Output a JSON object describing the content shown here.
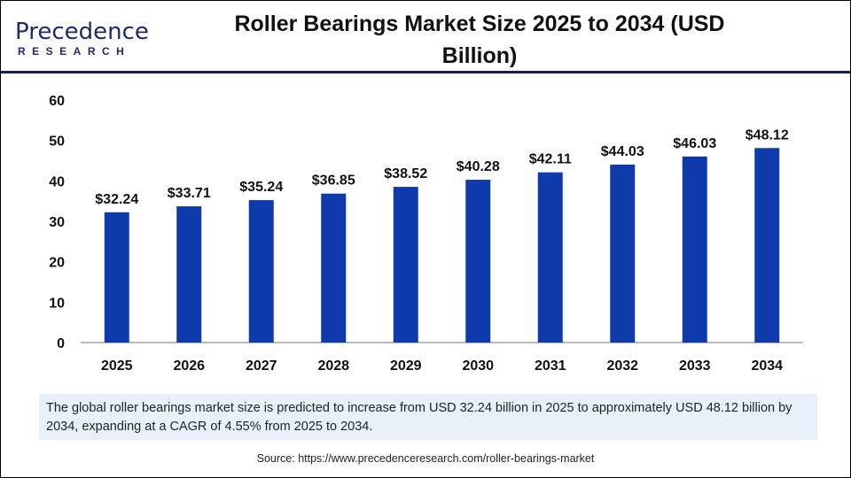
{
  "logo": {
    "line1": "Precedence",
    "line2": "RESEARCH"
  },
  "title": "Roller Bearings Market Size 2025 to 2034 (USD Billion)",
  "chart_data": {
    "type": "bar",
    "title": "Roller Bearings Market Size 2025 to 2034 (USD Billion)",
    "categories": [
      "2025",
      "2026",
      "2027",
      "2028",
      "2029",
      "2030",
      "2031",
      "2032",
      "2033",
      "2034"
    ],
    "values": [
      32.24,
      33.71,
      35.24,
      36.85,
      38.52,
      40.28,
      42.11,
      44.03,
      46.03,
      48.12
    ],
    "data_labels": [
      "$32.24",
      "$33.71",
      "$35.24",
      "$36.85",
      "$38.52",
      "$40.28",
      "$42.11",
      "$44.03",
      "$46.03",
      "$48.12"
    ],
    "ylim": [
      0,
      60
    ],
    "yticks": [
      0,
      10,
      20,
      30,
      40,
      50,
      60
    ],
    "grid": false,
    "bar_color": "#0f3aac"
  },
  "summary": "The global roller bearings market size is predicted to increase from USD 32.24 billion in 2025 to approximately USD 48.12 billion by 2034, expanding at a CAGR of 4.55% from 2025 to 2034.",
  "source": "Source: https://www.precedenceresearch.com/roller-bearings-market"
}
